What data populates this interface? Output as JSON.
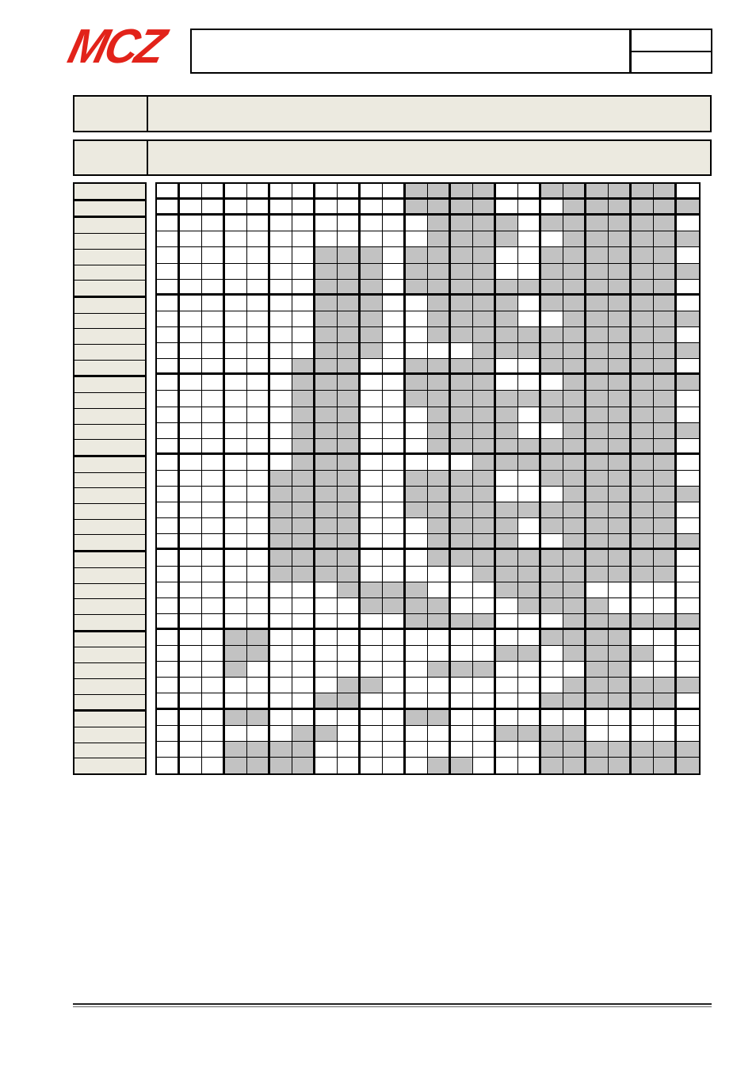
{
  "page": {
    "logo_text": "MCZ",
    "header_box_text": "",
    "ref_box_rows": [
      "",
      ""
    ],
    "info_bars": [
      {
        "label": "",
        "value": ""
      },
      {
        "label": "",
        "value": ""
      }
    ],
    "colors": {
      "logo_red": "#e2231a",
      "beige": "#eceae0",
      "cell_gray": "#c2c2c2",
      "line_black": "#000000"
    }
  },
  "matrix": {
    "columns": 24,
    "rows_count": 37,
    "row_labels": [
      "",
      "",
      "",
      "",
      "",
      "",
      "",
      "",
      "",
      "",
      "",
      "",
      "",
      "",
      "",
      "",
      "",
      "",
      "",
      "",
      "",
      "",
      "",
      "",
      "",
      "",
      "",
      "",
      "",
      "",
      "",
      "",
      "",
      "",
      "",
      "",
      ""
    ],
    "thick_after_rows": [
      1,
      2,
      7,
      12,
      17,
      23,
      28,
      33
    ],
    "thick_after_cols": [
      1,
      3,
      5,
      7,
      9,
      11,
      13,
      15,
      17,
      19,
      21,
      23
    ],
    "legend": "1 = gray filled cell, 0 = white cell",
    "rows": [
      "000000000001111001111110",
      "000000000001111000111111",
      "000000000000111101111110",
      "000000000000111100111111",
      "000000011101111001111110",
      "000000011101111001111111",
      "000000011101111111111110",
      "000000011100111101111110",
      "000000011100111100111111",
      "000000011100111111111110",
      "000000011100001111111111",
      "000000111001111001111110",
      "000000111001111000111111",
      "000000111001111111111110",
      "000000111000111101111110",
      "000000111000111100111111",
      "000000111000111111111110",
      "000000111000001111111110",
      "000001111001111001111110",
      "000001111001111000111111",
      "000001111001111111111110",
      "000001111000111101111110",
      "000001111000111100111111",
      "000001111000111111111110",
      "000001111000001111111110",
      "000000001111000111100000",
      "000000000111100011110000",
      "000000000001111000111111",
      "000110000000000001111000",
      "000110000000000110111100",
      "000100000000111000011000",
      "000000001100000000111111",
      "000000011000000001111110",
      "000110000001100000000000",
      "000000110000000111100000",
      "000111100000000001111111",
      "000111100000110001111111"
    ]
  }
}
